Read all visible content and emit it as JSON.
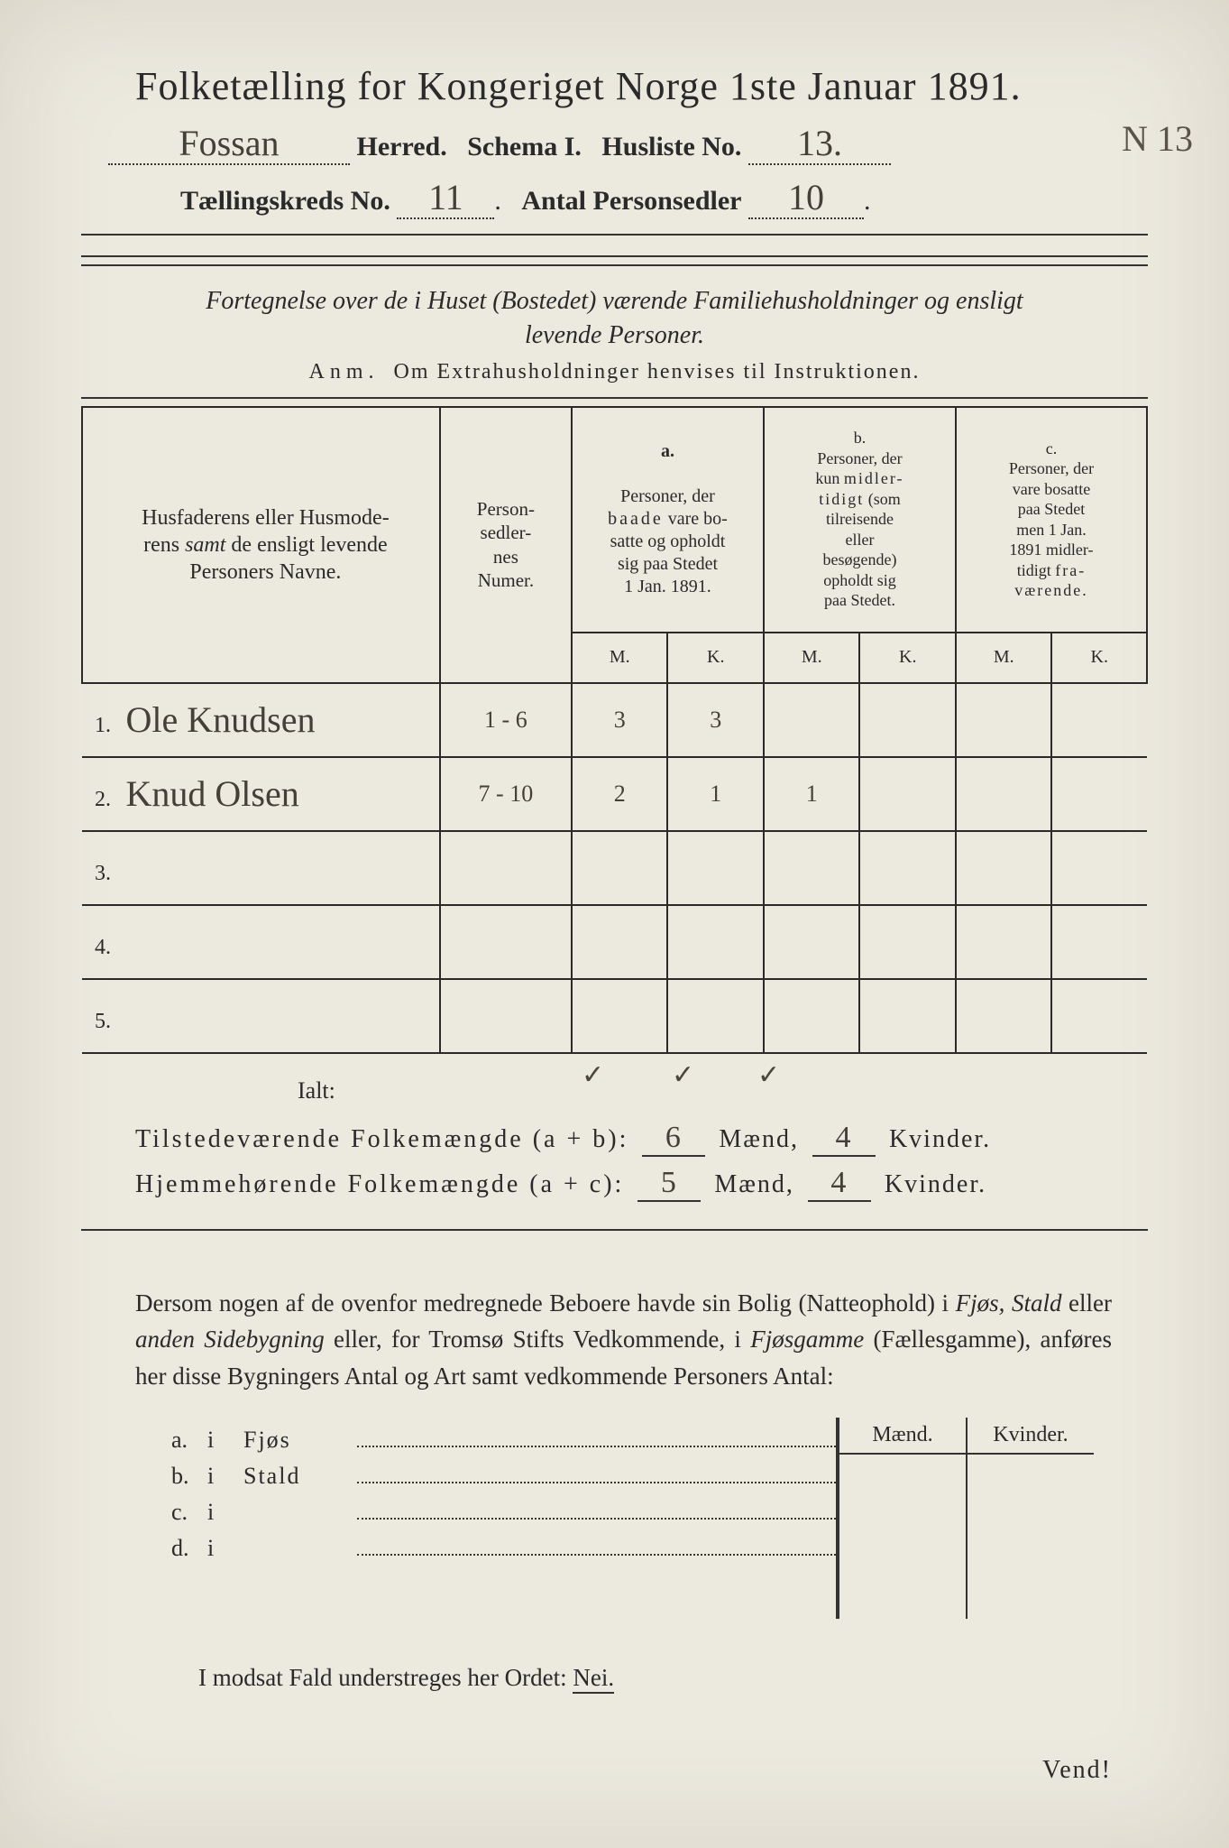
{
  "header": {
    "title": "Folketælling for Kongeriget Norge 1ste Januar 1891.",
    "herred_value": "Fossan",
    "herred_label": "Herred.",
    "schema_label": "Schema I.",
    "husliste_label": "Husliste No.",
    "husliste_value": "13.",
    "husliste_margin": "N 13",
    "kreds_label": "Tællingskreds No.",
    "kreds_value": "11",
    "personsedler_label": "Antal Personsedler",
    "personsedler_value": "10"
  },
  "desc": {
    "line1": "Fortegnelse over de i Huset (Bostedet) værende Familiehusholdninger og ensligt",
    "line2": "levende Personer.",
    "anm_label": "Anm.",
    "anm_text": "Om Extrahusholdninger henvises til Instruktionen."
  },
  "table": {
    "col_name": "Husfaderens eller Husmoderens samt de ensligt levende Personers Navne.",
    "col_num": "Person-\nsedler-\nnes\nNumer.",
    "col_a_tag": "a.",
    "col_a": "Personer, der baade vare bosatte og opholdt sig paa Stedet 1 Jan. 1891.",
    "col_b_tag": "b.",
    "col_b": "Personer, der kun midlertidigt (som tilreisende eller besøgende) opholdt sig paa Stedet.",
    "col_c_tag": "c.",
    "col_c": "Personer, der vare bosatte paa Stedet men 1 Jan. 1891 midlertidigt fraværende.",
    "m": "M.",
    "k": "K.",
    "rows": [
      {
        "n": "1.",
        "name": "Ole Knudsen",
        "num": "1 - 6",
        "am": "3",
        "ak": "3",
        "bm": "",
        "bk": "",
        "cm": "",
        "ck": ""
      },
      {
        "n": "2.",
        "name": "Knud Olsen",
        "num": "7 - 10",
        "am": "2",
        "ak": "1",
        "bm": "1",
        "bk": "",
        "cm": "",
        "ck": ""
      },
      {
        "n": "3.",
        "name": "",
        "num": "",
        "am": "",
        "ak": "",
        "bm": "",
        "bk": "",
        "cm": "",
        "ck": ""
      },
      {
        "n": "4.",
        "name": "",
        "num": "",
        "am": "",
        "ak": "",
        "bm": "",
        "bk": "",
        "cm": "",
        "ck": ""
      },
      {
        "n": "5.",
        "name": "",
        "num": "",
        "am": "",
        "ak": "",
        "bm": "",
        "bk": "",
        "cm": "",
        "ck": ""
      }
    ],
    "ticks": {
      "am": "✓",
      "ak": "✓",
      "bm": "✓"
    }
  },
  "totals": {
    "ialt": "Ialt:",
    "line1_label": "Tilstedeværende Folkemængde (a + b):",
    "line1_m": "6",
    "line1_k": "4",
    "line2_label": "Hjemmehørende Folkemængde (a + c):",
    "line2_m": "5",
    "line2_k": "4",
    "maend": "Mænd,",
    "kvinder": "Kvinder."
  },
  "para": "Dersom nogen af de ovenfor medregnede Beboere havde sin Bolig (Natteophold) i Fjøs, Stald eller anden Sidebygning eller, for Tromsø Stifts Vedkommende, i Fjøsgamme (Fællesgamme), anføres her disse Bygningers Antal og Art samt vedkommende Personers Antal:",
  "side": {
    "maend": "Mænd.",
    "kvinder": "Kvinder.",
    "rows": [
      {
        "l": "a.",
        "i": "i",
        "n": "Fjøs"
      },
      {
        "l": "b.",
        "i": "i",
        "n": "Stald"
      },
      {
        "l": "c.",
        "i": "i",
        "n": ""
      },
      {
        "l": "d.",
        "i": "i",
        "n": ""
      }
    ]
  },
  "modsat": {
    "text_a": "I modsat Fald understreges her Ordet:",
    "nei": "Nei."
  },
  "vend": "Vend!",
  "colors": {
    "paper": "#ece9df",
    "ink": "#2a2a2a",
    "handwriting": "#444038"
  }
}
